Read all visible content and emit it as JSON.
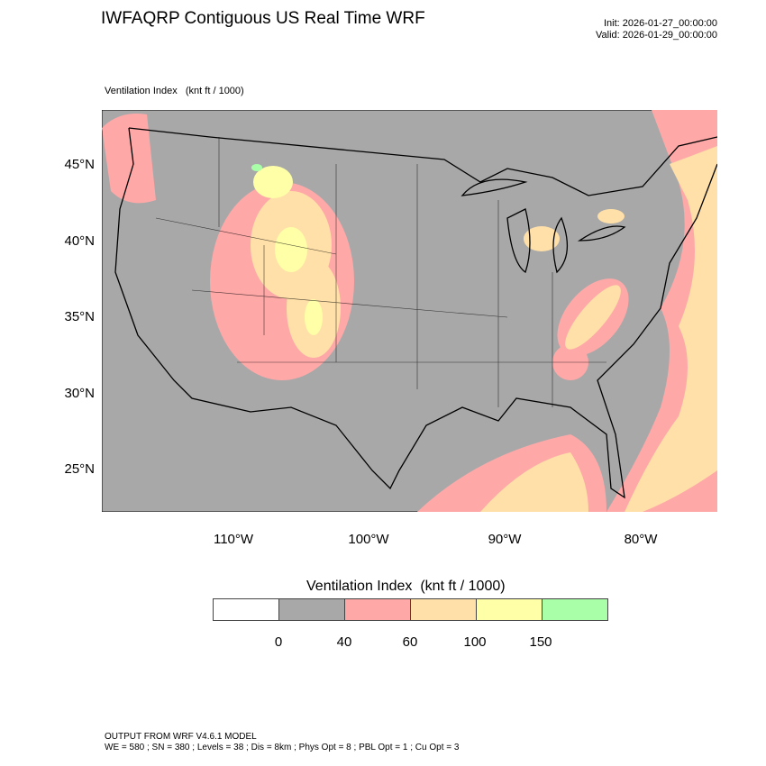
{
  "header": {
    "title": "IWFAQRP Contiguous US Real Time WRF",
    "init": "Init: 2026-01-27_00:00:00",
    "valid": "Valid: 2026-01-29_00:00:00"
  },
  "field_label": "Ventilation Index   (knt ft / 1000)",
  "map": {
    "lat_labels": [
      "45°N",
      "40°N",
      "35°N",
      "30°N",
      "25°N"
    ],
    "lon_labels": [
      "110°W",
      "100°W",
      "90°W",
      "80°W"
    ],
    "colors": {
      "background": "#a8a8a8",
      "boundaries": "#000000"
    }
  },
  "legend": {
    "title": "Ventilation Index  (knt ft / 1000)",
    "colors": [
      "#ffffff",
      "#a8a8a8",
      "#ffa8a8",
      "#ffe0a8",
      "#ffffa8",
      "#a8ffa8"
    ],
    "labels": [
      "0",
      "40",
      "60",
      "100",
      "150"
    ]
  },
  "footer": {
    "line1": "OUTPUT FROM WRF V4.6.1 MODEL",
    "line2": "WE = 580 ; SN = 380 ; Levels = 38 ; Dis = 8km ; Phys Opt = 8 ; PBL Opt = 1 ; Cu Opt = 3"
  }
}
